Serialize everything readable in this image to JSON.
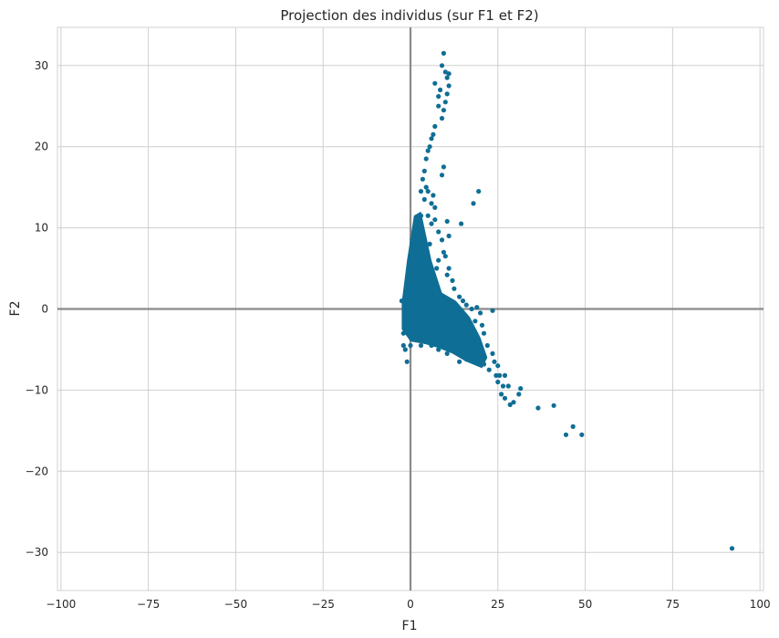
{
  "chart_data": {
    "type": "scatter",
    "title": "Projection des individus (sur F1 et F2)",
    "xlabel": "F1",
    "ylabel": "F2",
    "xlim": [
      -101,
      101
    ],
    "ylim": [
      -34.7,
      34.7
    ],
    "xticks": [
      -100,
      -75,
      -50,
      -25,
      0,
      25,
      50,
      75,
      100
    ],
    "yticks": [
      -30,
      -20,
      -10,
      0,
      10,
      20,
      30
    ],
    "xtick_labels": [
      "−100",
      "−75",
      "−50",
      "−25",
      "0",
      "25",
      "50",
      "75",
      "100"
    ],
    "ytick_labels": [
      "−30",
      "−20",
      "−10",
      "0",
      "10",
      "20",
      "30"
    ],
    "grid": true,
    "reference_lines": {
      "x": 0,
      "y": 0
    },
    "colors": {
      "points": "#0f6e95",
      "grid": "#cfcfcf",
      "reference": "#8a8a8a"
    },
    "points": [
      [
        9.5,
        31.5
      ],
      [
        9.0,
        30.0
      ],
      [
        10.0,
        29.2
      ],
      [
        11.0,
        29.0
      ],
      [
        10.5,
        28.5
      ],
      [
        7.0,
        27.8
      ],
      [
        11.0,
        27.5
      ],
      [
        8.5,
        27.0
      ],
      [
        10.5,
        26.5
      ],
      [
        8.0,
        26.2
      ],
      [
        10.0,
        25.5
      ],
      [
        8.0,
        25.0
      ],
      [
        9.5,
        24.5
      ],
      [
        9.0,
        23.5
      ],
      [
        7.0,
        22.5
      ],
      [
        6.5,
        21.5
      ],
      [
        5.5,
        20.0
      ],
      [
        6.0,
        21.0
      ],
      [
        4.5,
        18.5
      ],
      [
        5.0,
        19.5
      ],
      [
        4.0,
        17.0
      ],
      [
        9.5,
        17.5
      ],
      [
        9.0,
        16.5
      ],
      [
        3.5,
        16.0
      ],
      [
        4.5,
        15.0
      ],
      [
        5.0,
        14.5
      ],
      [
        3.0,
        14.5
      ],
      [
        6.5,
        14.0
      ],
      [
        4.0,
        13.5
      ],
      [
        7.0,
        12.5
      ],
      [
        6.0,
        13.0
      ],
      [
        5.0,
        11.5
      ],
      [
        3.0,
        11.5
      ],
      [
        10.5,
        10.8
      ],
      [
        14.5,
        10.5
      ],
      [
        8.0,
        9.5
      ],
      [
        11.0,
        9.0
      ],
      [
        9.0,
        8.5
      ],
      [
        19.5,
        14.5
      ],
      [
        18.0,
        13.0
      ],
      [
        9.5,
        7.0
      ],
      [
        10.0,
        6.5
      ],
      [
        11.0,
        5.0
      ],
      [
        10.5,
        4.2
      ],
      [
        12.0,
        3.5
      ],
      [
        12.5,
        2.5
      ],
      [
        14.0,
        1.5
      ],
      [
        15.0,
        1.0
      ],
      [
        16.0,
        0.5
      ],
      [
        17.5,
        0.0
      ],
      [
        19.0,
        0.2
      ],
      [
        20.0,
        -0.5
      ],
      [
        23.5,
        -0.2
      ],
      [
        18.5,
        -1.5
      ],
      [
        20.5,
        -2.0
      ],
      [
        21.0,
        -3.0
      ],
      [
        19.0,
        -4.0
      ],
      [
        22.0,
        -4.5
      ],
      [
        23.5,
        -5.5
      ],
      [
        24.0,
        -6.5
      ],
      [
        25.0,
        -7.0
      ],
      [
        22.5,
        -7.5
      ],
      [
        24.5,
        -8.2
      ],
      [
        25.5,
        -8.2
      ],
      [
        27.0,
        -8.2
      ],
      [
        26.5,
        -9.5
      ],
      [
        25.0,
        -9.0
      ],
      [
        28.0,
        -9.5
      ],
      [
        31.5,
        -9.8
      ],
      [
        31.0,
        -10.5
      ],
      [
        26.0,
        -10.5
      ],
      [
        27.0,
        -11.0
      ],
      [
        29.5,
        -11.5
      ],
      [
        28.5,
        -11.8
      ],
      [
        36.5,
        -12.2
      ],
      [
        41.0,
        -11.9
      ],
      [
        46.5,
        -14.5
      ],
      [
        44.5,
        -15.5
      ],
      [
        49.0,
        -15.5
      ],
      [
        92.0,
        -29.5
      ],
      [
        -2.0,
        -4.5
      ],
      [
        -1.5,
        -5.0
      ],
      [
        -1.0,
        -6.5
      ],
      [
        -2.5,
        1.0
      ],
      [
        -1.5,
        0.5
      ],
      [
        -1.0,
        -1.0
      ],
      [
        -1.5,
        -2.5
      ],
      [
        -2.0,
        -3.0
      ],
      [
        0.0,
        4.5
      ],
      [
        0.5,
        8.5
      ],
      [
        1.0,
        9.5
      ],
      [
        2.0,
        11.0
      ],
      [
        1.0,
        7.0
      ],
      [
        0.5,
        6.0
      ],
      [
        2.5,
        10.0
      ],
      [
        3.5,
        9.0
      ],
      [
        6.0,
        10.5
      ],
      [
        7.0,
        11.0
      ],
      [
        5.5,
        8.0
      ],
      [
        8.0,
        6.0
      ],
      [
        7.5,
        5.0
      ],
      [
        6.5,
        3.0
      ],
      [
        4.0,
        -4.0
      ],
      [
        6.0,
        -4.5
      ],
      [
        8.0,
        -5.0
      ],
      [
        10.5,
        -5.5
      ],
      [
        12.5,
        -5.0
      ],
      [
        13.5,
        -4.2
      ],
      [
        15.0,
        -4.0
      ],
      [
        16.5,
        -3.5
      ],
      [
        17.5,
        -5.5
      ],
      [
        19.5,
        -6.0
      ],
      [
        21.0,
        -6.8
      ],
      [
        18.0,
        -6.5
      ],
      [
        16.0,
        -6.2
      ],
      [
        14.0,
        -6.5
      ],
      [
        12.0,
        -3.5
      ],
      [
        11.5,
        -4.0
      ],
      [
        3.0,
        -4.5
      ],
      [
        0.0,
        -4.5
      ]
    ]
  }
}
